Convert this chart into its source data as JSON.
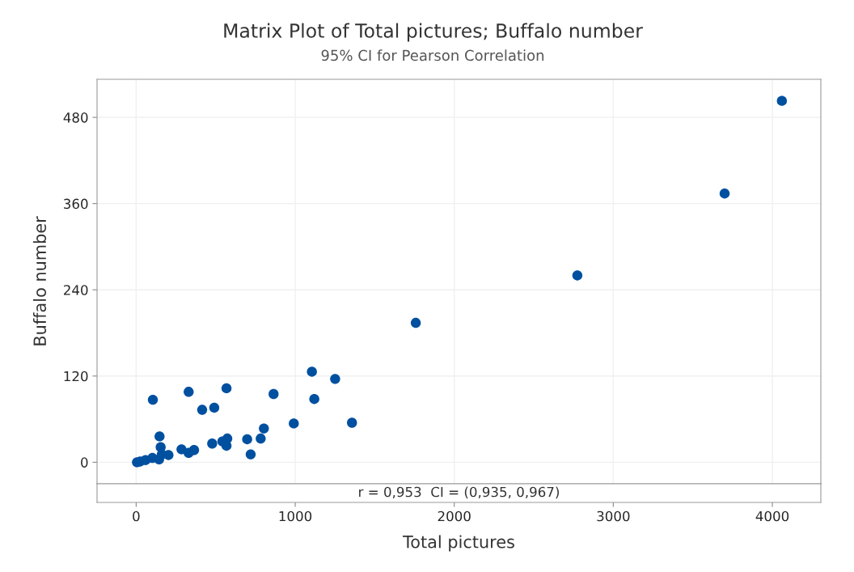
{
  "chart_data": {
    "type": "scatter",
    "title": "Matrix Plot of Total pictures; Buffalo number",
    "subtitle": "95% CI for Pearson Correlation",
    "xlabel": "Total pictures",
    "ylabel": "Buffalo number",
    "annotations": [
      "r = 0,953  CI = (0,935, 0,967)"
    ],
    "x": [
      5,
      25,
      59,
      102,
      144,
      105,
      330,
      415,
      491,
      568,
      864,
      1105,
      1251,
      1120,
      991,
      803,
      783,
      698,
      720,
      573,
      568,
      542,
      478,
      364,
      330,
      285,
      203,
      154,
      147,
      161,
      1357,
      1758,
      2774,
      3700,
      4060
    ],
    "values": [
      0,
      1,
      3,
      6,
      4,
      87,
      98,
      73,
      76,
      103,
      95,
      126,
      116,
      88,
      54,
      47,
      33,
      32,
      11,
      33,
      23,
      29,
      26,
      17,
      13,
      18,
      10,
      21,
      36,
      11,
      55,
      194,
      260,
      374,
      503
    ],
    "color": "#0050a0",
    "marker": "circle",
    "grid": true,
    "xlim": [
      -246,
      4305
    ],
    "ylim": [
      -30,
      533
    ],
    "xticks": [
      0,
      1000,
      2000,
      3000,
      4000
    ],
    "yticks": [
      0,
      120,
      240,
      360,
      480
    ]
  }
}
